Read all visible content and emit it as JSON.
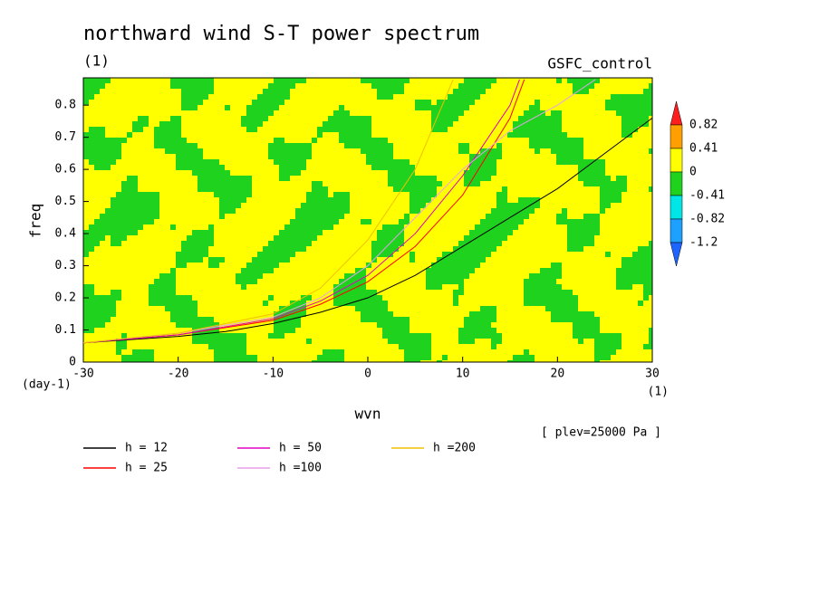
{
  "chart_data": {
    "type": "contour-line",
    "title": "northward wind S-T power spectrum",
    "subtitle": "(1)",
    "run_label": "GSFC_control",
    "x_label": "wvn",
    "x_unit": "(1)",
    "y_label": "freq",
    "y_unit": "(day-1)",
    "level_note": "[ plev=25000 Pa ]",
    "xlim": [
      -30,
      30
    ],
    "ylim": [
      0,
      0.885
    ],
    "xticks": [
      -30,
      -20,
      -10,
      0,
      10,
      20,
      30
    ],
    "yticks": [
      0,
      0.1,
      0.2,
      0.3,
      0.4,
      0.5,
      0.6,
      0.7,
      0.8
    ],
    "colorbar": {
      "levels": [
        -1.2,
        -0.82,
        -0.41,
        0,
        0.41,
        0.82
      ],
      "colors": [
        "#1e64ff",
        "#1ea0ff",
        "#00e6e6",
        "#1ed21e",
        "#ffff00",
        "#ffa000",
        "#ff1e1e"
      ]
    },
    "series": [
      {
        "name": "h = 12",
        "color": "#000000",
        "x": [
          -30,
          -25,
          -20,
          -15,
          -10,
          -5,
          0,
          5,
          10,
          15,
          20,
          25,
          30
        ],
        "values": [
          0.06,
          0.07,
          0.08,
          0.095,
          0.12,
          0.155,
          0.2,
          0.27,
          0.36,
          0.45,
          0.54,
          0.65,
          0.76
        ]
      },
      {
        "name": "h = 25",
        "color": "#ff0000",
        "x": [
          -30,
          -20,
          -10,
          -5,
          0,
          5,
          10,
          15,
          16.5
        ],
        "values": [
          0.06,
          0.085,
          0.13,
          0.18,
          0.25,
          0.36,
          0.52,
          0.76,
          0.88
        ]
      },
      {
        "name": "h = 50",
        "color": "#e000c0",
        "x": [
          -30,
          -20,
          -10,
          -5,
          0,
          5,
          10,
          15,
          16
        ],
        "values": [
          0.06,
          0.085,
          0.135,
          0.19,
          0.27,
          0.4,
          0.58,
          0.8,
          0.88
        ]
      },
      {
        "name": "h =100",
        "color": "#e8a0e8",
        "x": [
          -30,
          -20,
          -10,
          -5,
          0,
          5,
          10,
          15,
          20,
          24
        ],
        "values": [
          0.06,
          0.09,
          0.14,
          0.2,
          0.3,
          0.45,
          0.6,
          0.72,
          0.8,
          0.88
        ]
      },
      {
        "name": "h =200",
        "color": "#f0c000",
        "x": [
          -30,
          -20,
          -10,
          -5,
          0,
          5,
          9
        ],
        "values": [
          0.06,
          0.09,
          0.15,
          0.23,
          0.38,
          0.6,
          0.88
        ]
      }
    ]
  }
}
